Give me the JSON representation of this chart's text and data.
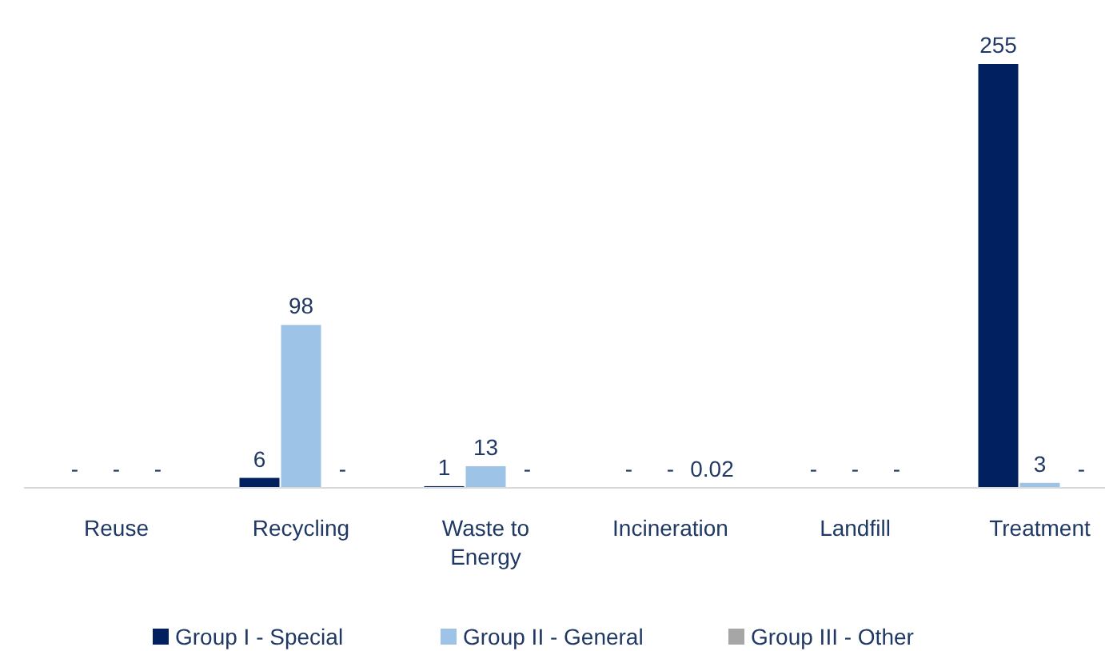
{
  "chart_data": {
    "type": "bar",
    "categories": [
      "Reuse",
      "Recycling",
      "Waste to Energy",
      "Incineration",
      "Landfill",
      "Treatment"
    ],
    "series": [
      {
        "name": "Group I - Special",
        "color": "#002060",
        "values": [
          null,
          6,
          1,
          null,
          null,
          255
        ],
        "value_labels": [
          "-",
          "6",
          "1",
          "-",
          "-",
          "255"
        ]
      },
      {
        "name": "Group II - General",
        "color": "#9dc3e6",
        "values": [
          null,
          98,
          13,
          null,
          null,
          3
        ],
        "value_labels": [
          "-",
          "98",
          "13",
          "-",
          "-",
          "3"
        ]
      },
      {
        "name": "Group III - Other",
        "color": "#a6a6a6",
        "values": [
          null,
          null,
          null,
          0.02,
          null,
          null
        ],
        "value_labels": [
          "-",
          "-",
          "-",
          "0.02",
          "-",
          "-"
        ]
      }
    ],
    "legend": "bottom",
    "grid": false
  }
}
